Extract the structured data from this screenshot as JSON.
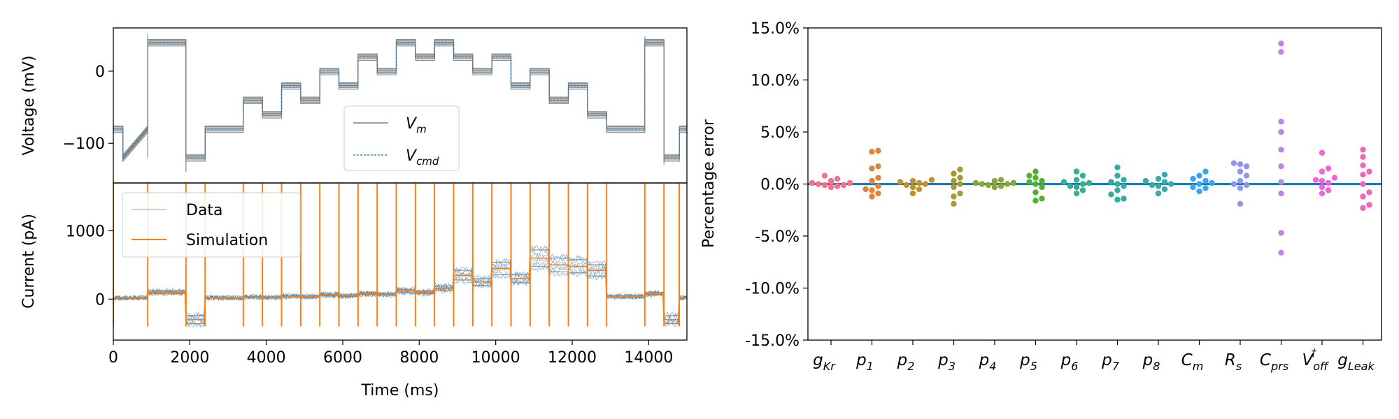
{
  "colors": {
    "data": "#1f77b4",
    "simulation": "#ff7f0e",
    "vm": "#808080",
    "vcmd": "#1f77b4",
    "zero_line": "#1f77b4"
  },
  "chart_data": [
    {
      "id": "voltage",
      "type": "line",
      "ylabel": "Voltage (mV)",
      "xlim": [
        0,
        15000
      ],
      "ylim": [
        -155,
        60
      ],
      "yticks": [
        {
          "v": 0,
          "label": "0"
        },
        {
          "v": -100,
          "label": "−100"
        }
      ],
      "legend": {
        "placement": "lower-right",
        "entries": [
          {
            "name": "V",
            "sub": "m",
            "style": "solid-grey"
          },
          {
            "name": "V",
            "sub": "cmd",
            "style": "dashed-blue"
          }
        ]
      },
      "protocol": [
        {
          "t0": 0,
          "t1": 250,
          "v": -80
        },
        {
          "t0": 250,
          "t1": 900,
          "v": -120,
          "ramp_to": -80
        },
        {
          "t0": 900,
          "t1": 1900,
          "v": 40
        },
        {
          "t0": 1900,
          "t1": 2400,
          "v": -120
        },
        {
          "t0": 2400,
          "t1": 3400,
          "v": -80
        },
        {
          "t0": 3400,
          "t1": 3900,
          "v": -40
        },
        {
          "t0": 3900,
          "t1": 4400,
          "v": -60
        },
        {
          "t0": 4400,
          "t1": 4900,
          "v": -20
        },
        {
          "t0": 4900,
          "t1": 5400,
          "v": -40
        },
        {
          "t0": 5400,
          "t1": 5900,
          "v": 0
        },
        {
          "t0": 5900,
          "t1": 6400,
          "v": -20
        },
        {
          "t0": 6400,
          "t1": 6900,
          "v": 20
        },
        {
          "t0": 6900,
          "t1": 7400,
          "v": 0
        },
        {
          "t0": 7400,
          "t1": 7900,
          "v": 40
        },
        {
          "t0": 7900,
          "t1": 8400,
          "v": 20
        },
        {
          "t0": 8400,
          "t1": 8900,
          "v": 40
        },
        {
          "t0": 8900,
          "t1": 9400,
          "v": 20
        },
        {
          "t0": 9400,
          "t1": 9900,
          "v": 0
        },
        {
          "t0": 9900,
          "t1": 10400,
          "v": 20
        },
        {
          "t0": 10400,
          "t1": 10900,
          "v": -20
        },
        {
          "t0": 10900,
          "t1": 11400,
          "v": 0
        },
        {
          "t0": 11400,
          "t1": 11900,
          "v": -40
        },
        {
          "t0": 11900,
          "t1": 12400,
          "v": -20
        },
        {
          "t0": 12400,
          "t1": 12900,
          "v": -60
        },
        {
          "t0": 12900,
          "t1": 13900,
          "v": -80
        },
        {
          "t0": 13900,
          "t1": 14400,
          "v": 40
        },
        {
          "t0": 14400,
          "t1": 14800,
          "v": -120
        },
        {
          "t0": 14800,
          "t1": 15000,
          "v": -80
        }
      ]
    },
    {
      "id": "current",
      "type": "line",
      "xlabel": "Time (ms)",
      "ylabel": "Current (pA)",
      "xlim": [
        0,
        15000
      ],
      "ylim": [
        -600,
        1700
      ],
      "xticks": [
        0,
        2000,
        4000,
        6000,
        8000,
        10000,
        12000,
        14000
      ],
      "yticks": [
        {
          "v": 0,
          "label": "0"
        },
        {
          "v": 1000,
          "label": "1000"
        }
      ],
      "legend": {
        "placement": "upper-left",
        "entries": [
          {
            "name": "Data",
            "style": "thin-blue"
          },
          {
            "name": "Simulation",
            "style": "orange"
          }
        ]
      },
      "step_current_levels": [
        {
          "t0": 0,
          "t1": 900,
          "v": 20
        },
        {
          "t0": 900,
          "t1": 1900,
          "v": 100
        },
        {
          "t0": 1900,
          "t1": 2400,
          "v": -300
        },
        {
          "t0": 2400,
          "t1": 3400,
          "v": 20
        },
        {
          "t0": 3400,
          "t1": 3900,
          "v": 30
        },
        {
          "t0": 3900,
          "t1": 4400,
          "v": 25
        },
        {
          "t0": 4400,
          "t1": 4900,
          "v": 40
        },
        {
          "t0": 4900,
          "t1": 5400,
          "v": 35
        },
        {
          "t0": 5400,
          "t1": 5900,
          "v": 60
        },
        {
          "t0": 5900,
          "t1": 6400,
          "v": 50
        },
        {
          "t0": 6400,
          "t1": 6900,
          "v": 80
        },
        {
          "t0": 6900,
          "t1": 7400,
          "v": 70
        },
        {
          "t0": 7400,
          "t1": 7900,
          "v": 120
        },
        {
          "t0": 7900,
          "t1": 8400,
          "v": 100
        },
        {
          "t0": 8400,
          "t1": 8900,
          "v": 160
        },
        {
          "t0": 8900,
          "t1": 9400,
          "v": 350
        },
        {
          "t0": 9400,
          "t1": 9900,
          "v": 250
        },
        {
          "t0": 9900,
          "t1": 10400,
          "v": 450
        },
        {
          "t0": 10400,
          "t1": 10900,
          "v": 300
        },
        {
          "t0": 10900,
          "t1": 11400,
          "v": 600
        },
        {
          "t0": 11400,
          "t1": 11900,
          "v": 500
        },
        {
          "t0": 11900,
          "t1": 12400,
          "v": 480
        },
        {
          "t0": 12400,
          "t1": 12900,
          "v": 420
        },
        {
          "t0": 12900,
          "t1": 13900,
          "v": 40
        },
        {
          "t0": 13900,
          "t1": 14400,
          "v": 80
        },
        {
          "t0": 14400,
          "t1": 14800,
          "v": -300
        },
        {
          "t0": 14800,
          "t1": 15000,
          "v": 20
        }
      ]
    },
    {
      "id": "percentage-error",
      "type": "scatter",
      "ylabel": "Percentage error",
      "ylim": [
        -15,
        15
      ],
      "yticks": [
        "15.0%",
        "10.0%",
        "5.0%",
        "0.0%",
        "-5.0%",
        "-10.0%",
        "-15.0%"
      ],
      "ytick_values": [
        15,
        10,
        5,
        0,
        -5,
        -10,
        -15
      ],
      "reference_line": 0,
      "categories": [
        {
          "base": "g",
          "sub": "Kr",
          "color": "#f77189"
        },
        {
          "base": "p",
          "sub": "1",
          "color": "#e1833a"
        },
        {
          "base": "p",
          "sub": "2",
          "color": "#c0912c"
        },
        {
          "base": "p",
          "sub": "3",
          "color": "#a79a32"
        },
        {
          "base": "p",
          "sub": "4",
          "color": "#8ca432"
        },
        {
          "base": "p",
          "sub": "5",
          "color": "#50b131"
        },
        {
          "base": "p",
          "sub": "6",
          "color": "#33b08e"
        },
        {
          "base": "p",
          "sub": "7",
          "color": "#35ad9c"
        },
        {
          "base": "p",
          "sub": "8",
          "color": "#37abaa"
        },
        {
          "base": "C",
          "sub": "m",
          "color": "#3ba3ec"
        },
        {
          "base": "R",
          "sub": "s",
          "color": "#8e95f3"
        },
        {
          "base": "C",
          "sub": "prs",
          "color": "#bb83f4"
        },
        {
          "base": "V",
          "sub": "off",
          "sup": "†",
          "color": "#f461dd"
        },
        {
          "base": "g",
          "sub": "Leak",
          "color": "#f564b6"
        }
      ],
      "values": [
        [
          0.1,
          0.2,
          -0.1,
          0.0,
          0.5,
          0.8,
          -0.2,
          -0.3,
          0.3,
          -0.1,
          0.2,
          0.1
        ],
        [
          3.2,
          3.1,
          1.7,
          1.5,
          0.3,
          -0.2,
          -0.5,
          -0.6,
          -0.9,
          -1.2,
          0.6
        ],
        [
          0.3,
          0.2,
          0.1,
          -0.1,
          -0.3,
          -0.5,
          -0.9,
          0.4,
          0.0
        ],
        [
          1.4,
          1.0,
          0.6,
          0.3,
          -0.3,
          -0.9,
          -1.2,
          -1.9,
          0.0
        ],
        [
          0.2,
          0.1,
          0.0,
          -0.1,
          -0.3,
          0.3,
          0.4,
          -0.2,
          0.1,
          0.0
        ],
        [
          1.2,
          0.8,
          0.6,
          0.3,
          0.0,
          -0.3,
          -0.8,
          -1.4,
          -1.6,
          0.2
        ],
        [
          1.2,
          0.8,
          0.4,
          0.1,
          -0.2,
          -0.6,
          -0.9,
          0.0,
          -0.3,
          0.2
        ],
        [
          1.6,
          0.8,
          0.4,
          0.2,
          -0.2,
          -0.6,
          -1.0,
          -1.5,
          -1.4,
          0.0
        ],
        [
          0.9,
          0.5,
          0.2,
          0.0,
          -0.2,
          -0.5,
          -0.9,
          0.3,
          -0.1
        ],
        [
          1.2,
          0.8,
          0.3,
          0.0,
          -0.3,
          -0.7,
          0.5,
          -0.4,
          0.1
        ],
        [
          2.0,
          1.7,
          1.2,
          0.8,
          0.3,
          -0.1,
          -0.4,
          -1.9,
          1.9,
          0.0
        ],
        [
          13.5,
          12.7,
          6.0,
          5.0,
          3.3,
          1.7,
          -0.9,
          -4.7,
          -6.6,
          0.2
        ],
        [
          3.0,
          1.5,
          1.2,
          0.6,
          0.3,
          -0.3,
          -0.6,
          -0.9,
          0.1,
          0.4
        ],
        [
          3.3,
          2.6,
          1.8,
          1.2,
          0.0,
          -0.8,
          -1.2,
          -2.0,
          -2.3,
          0.9
        ]
      ]
    }
  ]
}
